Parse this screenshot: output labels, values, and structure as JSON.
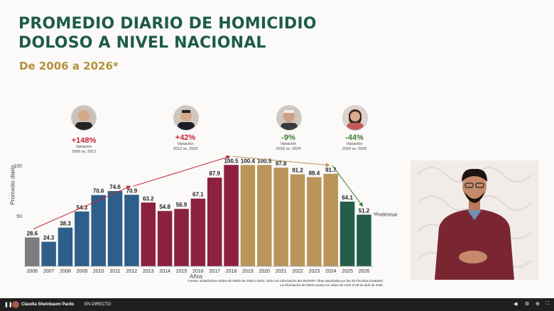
{
  "slide": {
    "title_line1": "PROMEDIO DIARIO DE HOMICIDIO",
    "title_line2": "DOLOSO A NIVEL NACIONAL",
    "subtitle": "De 2006 a 2026*",
    "source_line1": "Fuente: Estadísticas vitales de INEGI de 2006 a 2024, 2025 con información del SESNSP cifras reportadas por las 32 Fiscalías Estatales.",
    "source_line2": "La información de 2025 cuenta con datos de corte al 30 de abril de 2026."
  },
  "variations": [
    {
      "pct": "+148%",
      "label": "Variación",
      "range": "2006 vs. 2012",
      "color": "#c2243a"
    },
    {
      "pct": "+42%",
      "label": "Variación",
      "range": "2012 vs. 2018",
      "color": "#c2243a"
    },
    {
      "pct": "-9%",
      "label": "Variación",
      "range": "2018 vs. 2024",
      "color": "#3d7a3a"
    },
    {
      "pct": "-44%",
      "label": "Variación",
      "range": "2024 vs. 2026",
      "color": "#3d7a3a"
    }
  ],
  "chart_data": {
    "type": "bar",
    "xlabel": "Años",
    "ylabel": "Promedio diario",
    "y_ticks": [
      50,
      100
    ],
    "categories": [
      "2006",
      "2007",
      "2008",
      "2009",
      "2010",
      "2011",
      "2012",
      "2013",
      "2014",
      "2015",
      "2016",
      "2017",
      "2018",
      "2019",
      "2020",
      "2021",
      "2022",
      "2023",
      "2024",
      "2025",
      "2026"
    ],
    "values": [
      28.6,
      24.3,
      38.3,
      54.3,
      70.6,
      74.6,
      70.9,
      63.2,
      54.8,
      56.9,
      67.1,
      87.9,
      100.5,
      100.4,
      100.5,
      97.8,
      91.2,
      88.4,
      91.7,
      64.1,
      51.2
    ],
    "colors": [
      "#7d7d7d",
      "#2e5f8a",
      "#2e5f8a",
      "#2e5f8a",
      "#2e5f8a",
      "#2e5f8a",
      "#2e5f8a",
      "#8b2040",
      "#8b2040",
      "#8b2040",
      "#8b2040",
      "#8b2040",
      "#8b2040",
      "#b9955a",
      "#b9955a",
      "#b9955a",
      "#b9955a",
      "#b9955a",
      "#b9955a",
      "#255e48",
      "#255e48"
    ],
    "annotation": "*Preliminar"
  },
  "stream": {
    "name": "Claudia Sheinbaum Pardo",
    "status": "EN DIRECTO"
  }
}
